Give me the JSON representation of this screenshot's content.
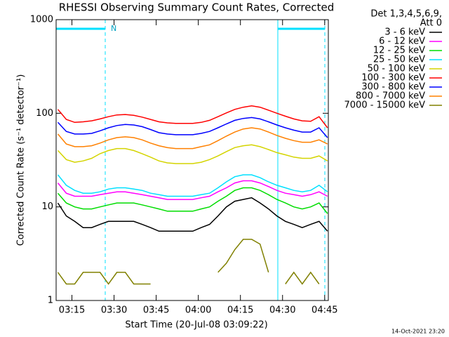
{
  "chart_data": {
    "type": "line",
    "title": "RHESSI Observing Summary Count Rates, Corrected",
    "x_label": "Start Time (20-Jul-08 03:09:22)",
    "y_label": "Corrected Count Rate (s⁻¹ detector⁻¹)",
    "legend_header": [
      "Det 1,3,4,5,6,9,",
      "Att 0"
    ],
    "night_label": "N",
    "timestamp": "14-Oct-2021 23:20",
    "log_scale": true,
    "legend": "right",
    "xlim": [
      9.37,
      106.3
    ],
    "xticks": [
      {
        "value": 15,
        "label": "03:15"
      },
      {
        "value": 30,
        "label": "03:30"
      },
      {
        "value": 45,
        "label": "03:45"
      },
      {
        "value": 60,
        "label": "04:00"
      },
      {
        "value": 75,
        "label": "04:15"
      },
      {
        "value": 90,
        "label": "04:30"
      },
      {
        "value": 105,
        "label": "04:45"
      }
    ],
    "ylim": [
      1,
      1000
    ],
    "yticks": [
      1,
      10,
      100,
      1000
    ],
    "x": [
      10,
      13,
      16,
      19,
      22,
      25,
      28,
      31,
      34,
      37,
      40,
      43,
      46,
      49,
      52,
      55,
      58,
      61,
      64,
      67,
      70,
      73,
      76,
      79,
      82,
      85,
      88,
      91,
      94,
      97,
      100,
      103,
      106
    ],
    "series": [
      {
        "name": "3 - 6 keV",
        "color": "#000000",
        "values": [
          11,
          8,
          7,
          6,
          6,
          6.5,
          7,
          7,
          7,
          7,
          6.5,
          6,
          5.5,
          5.5,
          5.5,
          5.5,
          5.5,
          6,
          6.5,
          8,
          10,
          11.5,
          12,
          12.5,
          11,
          9.5,
          8,
          7,
          6.5,
          6,
          6.5,
          7,
          5.5
        ]
      },
      {
        "name": "6 - 12 keV",
        "color": "#ff00ff",
        "values": [
          18,
          14,
          13,
          13,
          13,
          13.5,
          14,
          14.5,
          14.5,
          14,
          13.5,
          13,
          12.5,
          12,
          12,
          12,
          12,
          12.5,
          13,
          14.5,
          16,
          18,
          19,
          19,
          18,
          16.5,
          15,
          14,
          13.5,
          13,
          13.5,
          14.5,
          13
        ]
      },
      {
        "name": "12 - 25 keV",
        "color": "#00dd00",
        "values": [
          14,
          11,
          10,
          9.5,
          9.5,
          10,
          10.5,
          11,
          11,
          11,
          10.5,
          10,
          9.5,
          9,
          9,
          9,
          9,
          9.5,
          10,
          11.5,
          13,
          15,
          16,
          16,
          15,
          13.5,
          12,
          11,
          10,
          9.5,
          10,
          11,
          8.5
        ]
      },
      {
        "name": "25 - 50 keV",
        "color": "#00e0ff",
        "values": [
          22,
          17,
          15,
          14,
          14,
          14.5,
          15.5,
          16,
          16,
          15.5,
          15,
          14,
          13.5,
          13,
          13,
          13,
          13,
          13.5,
          14,
          16,
          18.5,
          21,
          22,
          22,
          20.5,
          18.5,
          17,
          16,
          15,
          14.5,
          15,
          17,
          14.5
        ]
      },
      {
        "name": "50 - 100 keV",
        "color": "#d4d400",
        "values": [
          40,
          32,
          30,
          31,
          33,
          37,
          40,
          42,
          42,
          40,
          37,
          34,
          31,
          29.5,
          29,
          29,
          29,
          30,
          32,
          35,
          39,
          43,
          45,
          46,
          44,
          41,
          38,
          36,
          34,
          33,
          33,
          35,
          31
        ]
      },
      {
        "name": "100 - 300 keV",
        "color": "#ff0000",
        "values": [
          110,
          86,
          80,
          81,
          83,
          87,
          92,
          96,
          97,
          95,
          91,
          86,
          81,
          79,
          78,
          78,
          78,
          80,
          84,
          92,
          101,
          110,
          116,
          120,
          116,
          108,
          100,
          93,
          87,
          83,
          82,
          92,
          70
        ]
      },
      {
        "name": "300 - 800 keV",
        "color": "#0000ff",
        "values": [
          80,
          64,
          60,
          60,
          61,
          65,
          70,
          74,
          76,
          75,
          72,
          67,
          62,
          60,
          59,
          59,
          59,
          61,
          64,
          70,
          77,
          84,
          88,
          90,
          87,
          81,
          75,
          70,
          66,
          63,
          63,
          70,
          55
        ]
      },
      {
        "name": "800 - 7000 keV",
        "color": "#ff8000",
        "values": [
          60,
          47,
          44,
          44,
          45,
          48,
          52,
          55,
          56,
          55,
          52,
          48,
          45,
          43,
          42,
          42,
          42,
          44,
          46,
          51,
          57,
          63,
          68,
          70,
          68,
          63,
          58,
          54,
          51,
          49,
          49,
          52,
          47
        ]
      },
      {
        "name": "7000 - 15000 keV",
        "color": "#808000",
        "values": [
          2,
          1.5,
          1.5,
          2,
          2,
          2,
          1.5,
          2,
          2,
          1.5,
          1.5,
          1.5,
          null,
          null,
          null,
          null,
          null,
          null,
          null,
          2,
          2.5,
          3.5,
          4.5,
          4.5,
          4,
          2,
          null,
          1.5,
          2,
          1.5,
          2,
          1.5,
          null
        ]
      }
    ]
  }
}
